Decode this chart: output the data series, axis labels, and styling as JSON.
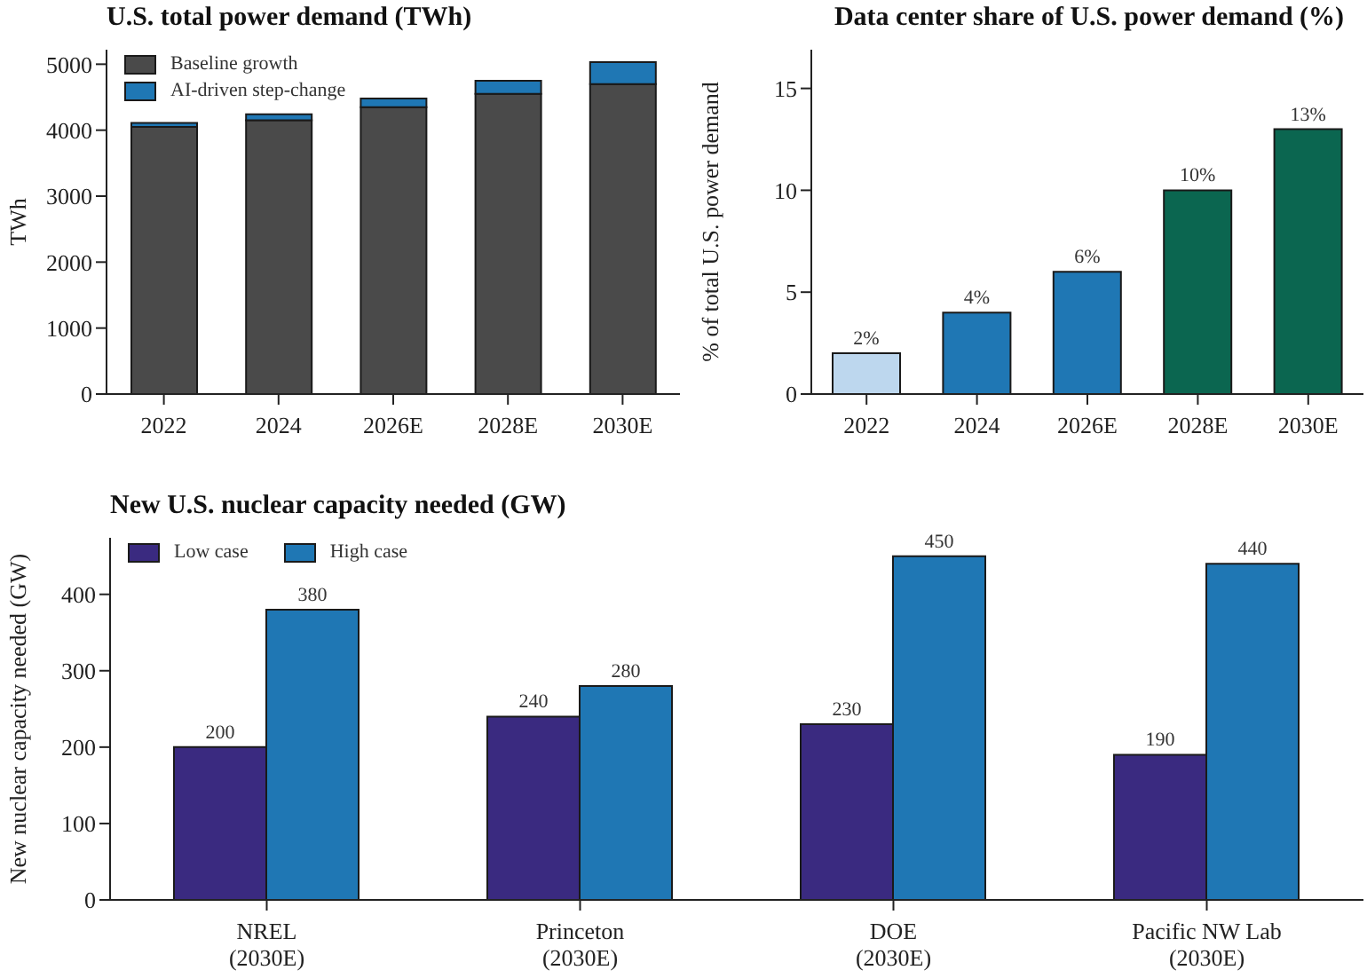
{
  "chart_data": [
    {
      "type": "bar",
      "title": "U.S. total power demand (TWh)",
      "ylabel": "TWh",
      "categories": [
        "2022",
        "2024",
        "2026E",
        "2028E",
        "2030E"
      ],
      "stacked": true,
      "legend": "top left",
      "ylim": [
        0,
        5220
      ],
      "yticks": [
        0,
        1000,
        2000,
        3000,
        4000,
        5000
      ],
      "series": [
        {
          "name": "Baseline growth",
          "color": "#4a4a4a",
          "values": [
            4050,
            4150,
            4350,
            4550,
            4700
          ]
        },
        {
          "name": "AI-driven step-change",
          "color": "#1f77b4",
          "values": [
            60,
            90,
            130,
            200,
            330
          ]
        }
      ]
    },
    {
      "type": "bar",
      "title": "Data center share of U.S. power demand (%)",
      "ylabel": "% of total U.S. power demand",
      "categories": [
        "2022",
        "2024",
        "2026E",
        "2028E",
        "2030E"
      ],
      "values": [
        2,
        4,
        6,
        10,
        13
      ],
      "colors": [
        "#bdd7ee",
        "#1f77b4",
        "#1f77b4",
        "#0b6650",
        "#0b6650"
      ],
      "value_labels": [
        "2%",
        "4%",
        "6%",
        "10%",
        "13%"
      ],
      "ylim": [
        0,
        16.9
      ],
      "yticks": [
        0,
        5,
        10,
        15
      ]
    },
    {
      "type": "bar",
      "title": "New U.S. nuclear capacity needed (GW)",
      "ylabel": "New nuclear capacity needed (GW)",
      "categories": [
        "NREL\n(2030E)",
        "Princeton\n(2030E)",
        "DOE\n(2030E)",
        "Pacific NW Lab\n(2030E)"
      ],
      "legend": "top left",
      "data_labels": true,
      "ylim": [
        0,
        474
      ],
      "yticks": [
        0,
        100,
        200,
        300,
        400
      ],
      "series": [
        {
          "name": "Low case",
          "color": "#3a2a80",
          "values": [
            200,
            240,
            230,
            190
          ]
        },
        {
          "name": "High case",
          "color": "#1f77b4",
          "values": [
            380,
            280,
            450,
            440
          ]
        }
      ]
    }
  ]
}
